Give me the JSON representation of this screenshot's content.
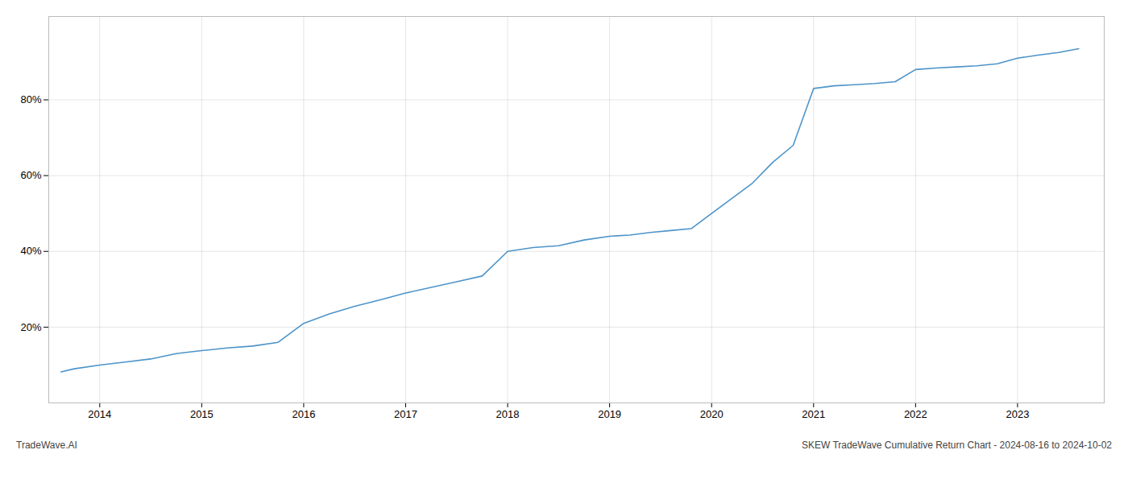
{
  "chart_data": {
    "type": "line",
    "annotations": [
      "TradeWave.AI",
      "SKEW TradeWave Cumulative Return Chart - 2024-08-16 to 2024-10-02"
    ],
    "color": "#4d94c9",
    "grid": true,
    "x": [
      2013.62,
      2013.75,
      2014.0,
      2014.25,
      2014.5,
      2014.75,
      2015.0,
      2015.25,
      2015.5,
      2015.75,
      2016.0,
      2016.25,
      2016.5,
      2016.75,
      2017.0,
      2017.25,
      2017.5,
      2017.75,
      2018.0,
      2018.25,
      2018.5,
      2018.75,
      2019.0,
      2019.2,
      2019.4,
      2019.6,
      2019.8,
      2020.0,
      2020.2,
      2020.4,
      2020.6,
      2020.8,
      2021.0,
      2021.2,
      2021.4,
      2021.6,
      2021.8,
      2022.0,
      2022.2,
      2022.4,
      2022.6,
      2022.8,
      2023.0,
      2023.2,
      2023.4,
      2023.6
    ],
    "values": [
      0.082,
      0.09,
      0.1,
      0.108,
      0.116,
      0.13,
      0.138,
      0.145,
      0.15,
      0.16,
      0.21,
      0.235,
      0.255,
      0.272,
      0.29,
      0.305,
      0.32,
      0.335,
      0.4,
      0.41,
      0.415,
      0.43,
      0.44,
      0.443,
      0.45,
      0.455,
      0.46,
      0.5,
      0.54,
      0.58,
      0.635,
      0.68,
      0.83,
      0.837,
      0.84,
      0.843,
      0.848,
      0.88,
      0.884,
      0.887,
      0.89,
      0.895,
      0.91,
      0.918,
      0.925,
      0.935
    ],
    "xlim": [
      2013.5,
      2023.85
    ],
    "ylim": [
      0.0,
      1.02
    ],
    "xticks": [
      2014,
      2015,
      2016,
      2017,
      2018,
      2019,
      2020,
      2021,
      2022,
      2023
    ],
    "yticks": [
      {
        "value": 0.2,
        "label": "20%"
      },
      {
        "value": 0.4,
        "label": "40%"
      },
      {
        "value": 0.6,
        "label": "60%"
      },
      {
        "value": 0.8,
        "label": "80%"
      }
    ]
  }
}
